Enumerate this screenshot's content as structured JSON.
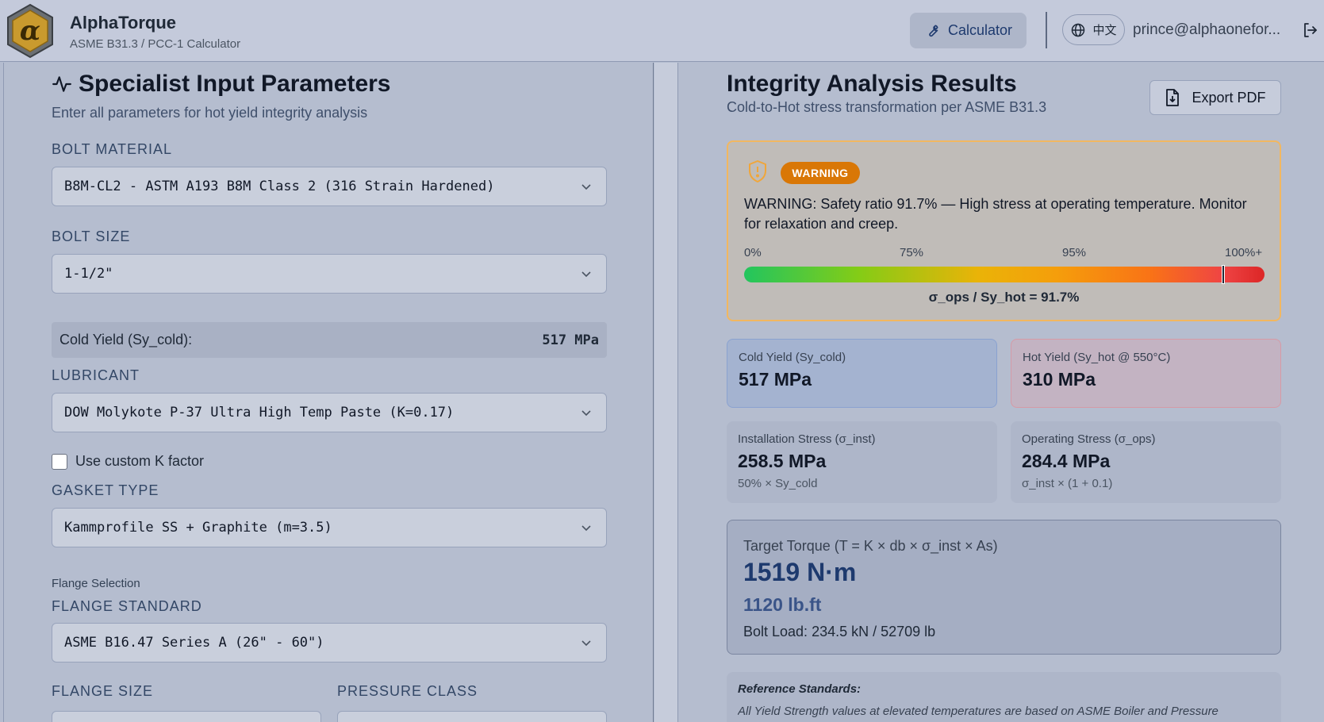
{
  "header": {
    "brand_title": "AlphaTorque",
    "brand_sub": "ASME B31.3 / PCC-1 Calculator",
    "calculator_label": "Calculator",
    "language_label": "中文",
    "user_email": "prince@alphaonefor..."
  },
  "input": {
    "title": "Specialist Input Parameters",
    "subtitle": "Enter all parameters for hot yield integrity analysis",
    "bolt_material_label": "BOLT MATERIAL",
    "bolt_material_value": "B8M-CL2 - ASTM A193 B8M Class 2 (316 Strain Hardened)",
    "bolt_size_label": "BOLT SIZE",
    "bolt_size_value": "1-1/2\"",
    "cold_yield_label": "Cold Yield (Sy_cold):",
    "cold_yield_value": "517 MPa",
    "lubricant_label": "LUBRICANT",
    "lubricant_value": "DOW Molykote P-37 Ultra High Temp Paste (K=0.17)",
    "custom_k_label": "Use custom K factor",
    "custom_k_checked": false,
    "gasket_label": "GASKET TYPE",
    "gasket_value": "Kammprofile SS + Graphite (m=3.5)",
    "flange_selection_label": "Flange Selection",
    "flange_standard_label": "FLANGE STANDARD",
    "flange_standard_value": "ASME B16.47 Series A (26\" - 60\")",
    "flange_size_label": "FLANGE SIZE",
    "pressure_class_label": "PRESSURE CLASS"
  },
  "results": {
    "title": "Integrity Analysis Results",
    "subtitle": "Cold-to-Hot stress transformation per ASME B31.3",
    "export_label": "Export PDF",
    "warning": {
      "badge": "WARNING",
      "message": "WARNING: Safety ratio 91.7% — High stress at operating temperature. Monitor for relaxation and creep.",
      "ticks": [
        "0%",
        "75%",
        "95%",
        "100%+"
      ],
      "ratio_fraction": 0.917,
      "ratio_text": "σ_ops / Sy_hot = 91.7%"
    },
    "cold_yield": {
      "label": "Cold Yield (Sy_cold)",
      "value": "517 MPa"
    },
    "hot_yield": {
      "label": "Hot Yield (Sy_hot @ 550°C)",
      "value": "310 MPa"
    },
    "installation": {
      "label": "Installation Stress (σ_inst)",
      "value": "258.5 MPa",
      "sub": "50% × Sy_cold"
    },
    "operating": {
      "label": "Operating Stress (σ_ops)",
      "value": "284.4 MPa",
      "sub": "σ_inst × (1 + 0.1)"
    },
    "torque": {
      "label": "Target Torque (T = K × db × σ_inst × As)",
      "value": "1519 N·m",
      "imperial": "1120 lb.ft",
      "bolt_load": "Bolt Load: 234.5 kN / 52709 lb"
    },
    "reference": {
      "title": "Reference Standards:",
      "body": "All Yield Strength values at elevated temperatures are based on ASME Boiler and Pressure"
    }
  },
  "colors": {
    "warning_accent": "#d97706",
    "brand_blue": "#1e3a6e"
  }
}
